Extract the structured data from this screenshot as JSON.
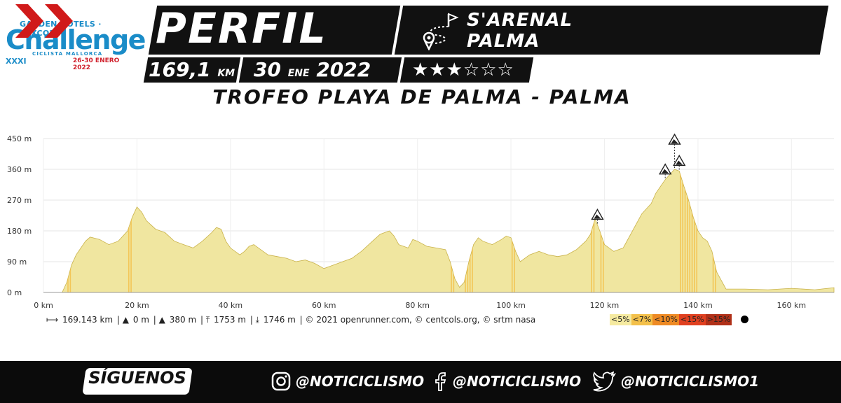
{
  "logo": {
    "top": "GARDEN HOTELS · LUXCOM",
    "main": "Challenge",
    "sub": "CICLISTA MALLORCA",
    "edition": "XXXI",
    "dates": "26-30 ENERO 2022"
  },
  "header": {
    "title": "PERFIL",
    "route_from": "S'ARENAL",
    "route_to": "PALMA",
    "distance": "169,1",
    "distance_unit": "KM",
    "day": "30",
    "month": "ENE",
    "year": "2022",
    "stars_filled": 3,
    "stars_total": 6,
    "stars_text": "★★★☆☆☆",
    "stage_name": "TROFEO PLAYA DE PALMA - PALMA"
  },
  "chart_data": {
    "type": "area",
    "x_unit": "km",
    "y_unit": "m",
    "xlim": [
      0,
      169.1
    ],
    "ylim": [
      0,
      450
    ],
    "x_ticks": [
      0,
      20,
      40,
      60,
      80,
      100,
      120,
      140,
      160
    ],
    "x_tick_labels": [
      "0 km",
      "20 km",
      "40 km",
      "60 km",
      "80 km",
      "100 km",
      "120 km",
      "140 km",
      "160 km"
    ],
    "y_ticks": [
      0,
      90,
      180,
      270,
      360,
      450
    ],
    "y_tick_labels": [
      "0 m",
      "90 m",
      "180 m",
      "270 m",
      "360 m",
      "450 m"
    ],
    "grid": true,
    "fill_color": "#f0e6a0",
    "x": [
      0,
      2,
      4,
      5,
      6,
      7,
      8,
      9,
      10,
      12,
      14,
      16,
      18,
      19,
      20,
      21,
      22,
      24,
      26,
      28,
      30,
      32,
      34,
      36,
      37,
      38,
      39,
      40,
      42,
      43,
      44,
      45,
      46,
      47,
      48,
      50,
      52,
      54,
      56,
      58,
      60,
      62,
      64,
      66,
      68,
      70,
      72,
      73,
      74,
      75,
      76,
      78,
      79,
      80,
      82,
      84,
      86,
      87,
      88,
      89,
      90,
      91,
      92,
      93,
      94,
      96,
      98,
      99,
      100,
      101,
      102,
      104,
      106,
      108,
      110,
      112,
      114,
      116,
      117,
      118,
      119,
      120,
      122,
      124,
      126,
      128,
      130,
      131,
      132,
      133,
      134,
      135,
      136,
      137,
      138,
      139,
      140,
      141,
      142,
      143,
      144,
      146,
      150,
      155,
      160,
      165,
      169.1
    ],
    "y": [
      0,
      0,
      0,
      30,
      80,
      110,
      130,
      150,
      162,
      155,
      140,
      150,
      180,
      220,
      250,
      235,
      210,
      185,
      175,
      150,
      140,
      130,
      150,
      175,
      190,
      185,
      150,
      130,
      110,
      120,
      135,
      140,
      130,
      120,
      110,
      105,
      100,
      90,
      95,
      85,
      70,
      80,
      90,
      100,
      120,
      145,
      170,
      175,
      180,
      165,
      140,
      130,
      155,
      150,
      135,
      130,
      125,
      90,
      40,
      15,
      30,
      90,
      140,
      160,
      150,
      140,
      155,
      165,
      160,
      120,
      90,
      110,
      120,
      110,
      105,
      110,
      125,
      150,
      170,
      215,
      180,
      140,
      120,
      130,
      180,
      230,
      260,
      290,
      310,
      330,
      345,
      360,
      355,
      310,
      270,
      220,
      180,
      160,
      150,
      120,
      60,
      10,
      10,
      8,
      12,
      8,
      14
    ],
    "climbs_km": [
      118.5,
      133,
      135,
      136
    ],
    "stats": {
      "distance": "169.143 km",
      "min_alt": "0 m",
      "max_alt": "380 m",
      "ascent": "1753 m",
      "descent": "1746 m",
      "credits": "© 2021 openrunner.com, © centcols.org, © srtm nasa"
    },
    "grade_legend": [
      {
        "label": "<5%",
        "color": "#f5eaa0"
      },
      {
        "label": "<7%",
        "color": "#f3c04a"
      },
      {
        "label": "<10%",
        "color": "#ee8a24"
      },
      {
        "label": "<15%",
        "color": "#e04020"
      },
      {
        "label": ">15%",
        "color": "#b03018"
      }
    ]
  },
  "footer": {
    "follow": "SÍGUENOS",
    "instagram": "@NOTICICLISMO",
    "facebook": "@NOTICICLISMO",
    "twitter": "@NOTICICLISMO1"
  }
}
